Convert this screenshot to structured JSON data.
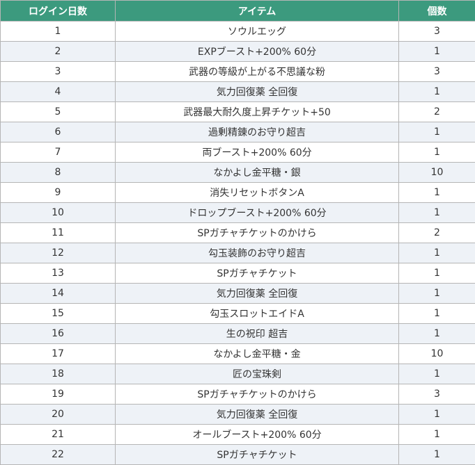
{
  "table": {
    "header": [
      "ログイン日数",
      "アイテム",
      "個数"
    ],
    "rows": [
      [
        1,
        "ソウルエッグ",
        3
      ],
      [
        2,
        "EXPブースト+200% 60分",
        1
      ],
      [
        3,
        "武器の等級が上がる不思議な粉",
        3
      ],
      [
        4,
        "気力回復薬 全回復",
        1
      ],
      [
        5,
        "武器最大耐久度上昇チケット+50",
        2
      ],
      [
        6,
        "過剰精錬のお守り超吉",
        1
      ],
      [
        7,
        "両ブースト+200% 60分",
        1
      ],
      [
        8,
        "なかよし金平糖・銀",
        10
      ],
      [
        9,
        "消失リセットボタンA",
        1
      ],
      [
        10,
        "ドロップブースト+200% 60分",
        1
      ],
      [
        11,
        "SPガチャチケットのかけら",
        2
      ],
      [
        12,
        "勾玉装飾のお守り超吉",
        1
      ],
      [
        13,
        "SPガチャチケット",
        1
      ],
      [
        14,
        "気力回復薬 全回復",
        1
      ],
      [
        15,
        "勾玉スロットエイドA",
        1
      ],
      [
        16,
        "生の祝印 超吉",
        1
      ],
      [
        17,
        "なかよし金平糖・金",
        10
      ],
      [
        18,
        "匠の宝珠剣",
        1
      ],
      [
        19,
        "SPガチャチケットのかけら",
        3
      ],
      [
        20,
        "気力回復薬 全回復",
        1
      ],
      [
        21,
        "オールブースト+200% 60分",
        1
      ],
      [
        22,
        "SPガチャチケット",
        1
      ]
    ]
  }
}
